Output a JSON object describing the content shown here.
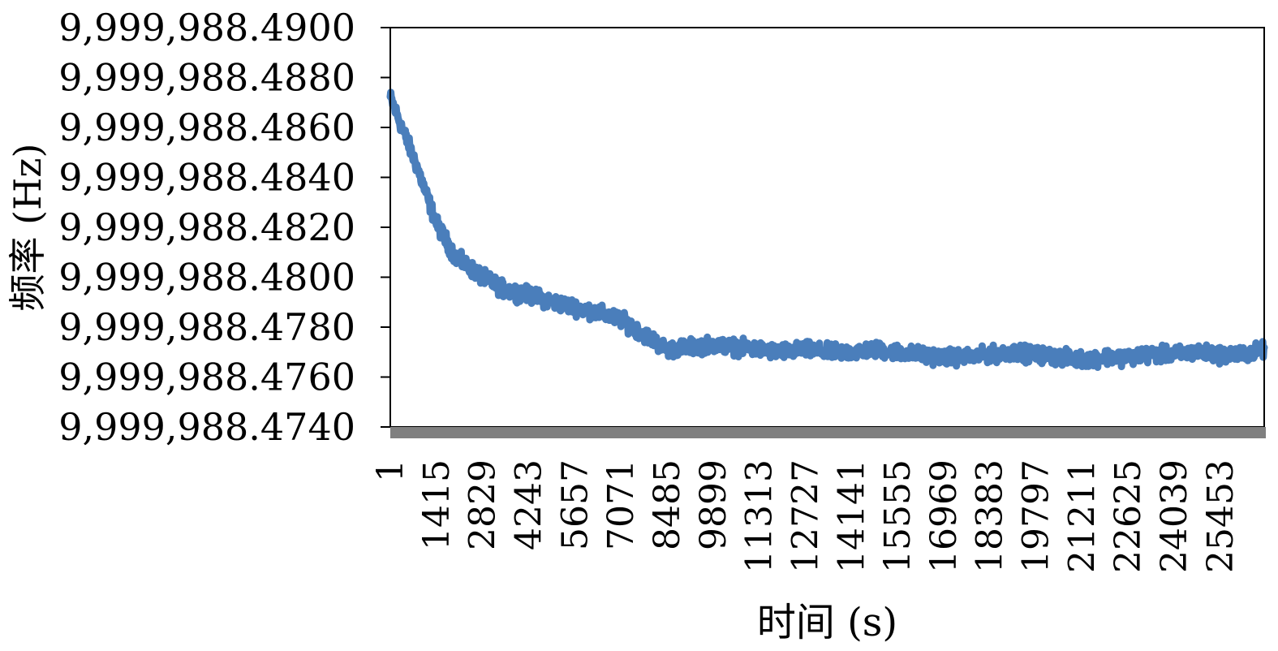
{
  "chart_data": {
    "type": "line",
    "xlabel": "时间 (s)",
    "ylabel": "频率 (Hz)",
    "ylim": [
      9999988.474,
      9999988.49
    ],
    "xlim": [
      1,
      26800
    ],
    "y_ticks": [
      "9,999,988.4900",
      "9,999,988.4880",
      "9,999,988.4860",
      "9,999,988.4840",
      "9,999,988.4820",
      "9,999,988.4800",
      "9,999,988.4780",
      "9,999,988.4760",
      "9,999,988.4740"
    ],
    "x_ticks": [
      "1",
      "1415",
      "2829",
      "4243",
      "5657",
      "7071",
      "8485",
      "9899",
      "11313",
      "12727",
      "14141",
      "15555",
      "16969",
      "18383",
      "19797",
      "21211",
      "22625",
      "24039",
      "25453"
    ],
    "series_color": "#4a7ebb",
    "grid": false,
    "legend": "none",
    "series": [
      {
        "x": [
          1,
          300,
          800,
          1400,
          2000,
          2829,
          3500,
          4243,
          5000,
          5657,
          6300,
          7071,
          7800,
          8485,
          9200,
          9899,
          10600,
          11313,
          12000,
          12727,
          13400,
          14141,
          14800,
          15555,
          16200,
          16969,
          17700,
          18383,
          19100,
          19797,
          20500,
          21211,
          21900,
          22625,
          23300,
          24039,
          24700,
          25453,
          26100,
          26800
        ],
        "values": [
          9999988.4872,
          9999988.4862,
          9999988.4845,
          9999988.4822,
          9999988.4808,
          9999988.48,
          9999988.4795,
          9999988.4793,
          9999988.479,
          9999988.4788,
          9999988.4786,
          9999988.4783,
          9999988.4777,
          9999988.4771,
          9999988.4772,
          9999988.4773,
          9999988.4772,
          9999988.4771,
          9999988.477,
          9999988.4771,
          9999988.477,
          9999988.477,
          9999988.4771,
          9999988.477,
          9999988.4769,
          9999988.4768,
          9999988.4768,
          9999988.4769,
          9999988.477,
          9999988.4769,
          9999988.4768,
          9999988.4767,
          9999988.4768,
          9999988.4768,
          9999988.4769,
          9999988.4769,
          9999988.477,
          9999988.4769,
          9999988.4769,
          9999988.4771
        ],
        "noise_band": 0.00045
      }
    ]
  }
}
